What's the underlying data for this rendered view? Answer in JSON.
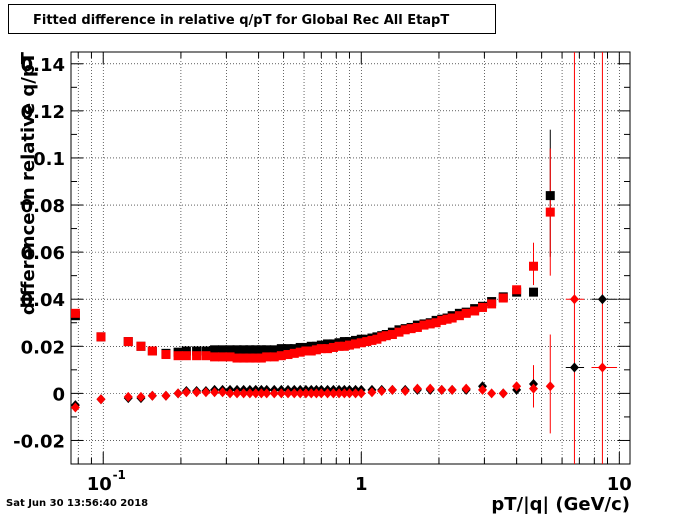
{
  "header": {
    "title": "Fitted difference in relative q/pT  for Global Rec All EtapT"
  },
  "footer": {
    "datestamp": "Sat Jun 30 13:56:40 2018"
  },
  "chart_data": {
    "type": "scatter",
    "title": "Fitted difference in relative q/pT  for Global Rec All EtapT",
    "xlabel": "pT/|q| (GeV/c)",
    "ylabel": "difference in relative q/pT",
    "xscale": "log",
    "xlim": [
      0.075,
      11.0
    ],
    "ylim": [
      -0.03,
      0.145
    ],
    "grid": true,
    "x_tick_labels": [
      "10^-1",
      "1",
      "10"
    ],
    "y_tick_labels": [
      "-0.02",
      "0",
      "0.02",
      "0.04",
      "0.06",
      "0.08",
      "0.1",
      "0.12",
      "0.14"
    ],
    "colors": {
      "black": "#000000",
      "red": "#ff0000"
    },
    "series": [
      {
        "marker": "square",
        "color": "#000000",
        "points": [
          [
            0.078,
            0.033
          ],
          [
            0.098,
            0.024
          ],
          [
            0.125,
            0.022
          ],
          [
            0.14,
            0.02
          ],
          [
            0.155,
            0.018
          ],
          [
            0.175,
            0.017
          ],
          [
            0.195,
            0.0175
          ],
          [
            0.21,
            0.018
          ],
          [
            0.23,
            0.018
          ],
          [
            0.25,
            0.018
          ],
          [
            0.27,
            0.0185
          ],
          [
            0.29,
            0.0185
          ],
          [
            0.31,
            0.0185
          ],
          [
            0.33,
            0.0185
          ],
          [
            0.35,
            0.0185
          ],
          [
            0.37,
            0.0185
          ],
          [
            0.39,
            0.0185
          ],
          [
            0.41,
            0.0185
          ],
          [
            0.43,
            0.0185
          ],
          [
            0.46,
            0.0185
          ],
          [
            0.49,
            0.019
          ],
          [
            0.52,
            0.019
          ],
          [
            0.55,
            0.019
          ],
          [
            0.58,
            0.0195
          ],
          [
            0.61,
            0.0195
          ],
          [
            0.64,
            0.02
          ],
          [
            0.67,
            0.02
          ],
          [
            0.7,
            0.0205
          ],
          [
            0.74,
            0.021
          ],
          [
            0.78,
            0.021
          ],
          [
            0.82,
            0.0215
          ],
          [
            0.86,
            0.022
          ],
          [
            0.9,
            0.022
          ],
          [
            0.95,
            0.0225
          ],
          [
            1.0,
            0.023
          ],
          [
            1.05,
            0.023
          ],
          [
            1.1,
            0.0235
          ],
          [
            1.15,
            0.024
          ],
          [
            1.2,
            0.0245
          ],
          [
            1.25,
            0.025
          ],
          [
            1.32,
            0.026
          ],
          [
            1.4,
            0.027
          ],
          [
            1.48,
            0.0275
          ],
          [
            1.56,
            0.028
          ],
          [
            1.65,
            0.029
          ],
          [
            1.75,
            0.0295
          ],
          [
            1.85,
            0.03
          ],
          [
            1.95,
            0.031
          ],
          [
            2.05,
            0.0315
          ],
          [
            2.15,
            0.032
          ],
          [
            2.25,
            0.033
          ],
          [
            2.4,
            0.034
          ],
          [
            2.55,
            0.0345
          ],
          [
            2.75,
            0.036
          ],
          [
            2.95,
            0.037
          ],
          [
            3.2,
            0.039
          ],
          [
            3.55,
            0.041
          ],
          [
            4.0,
            0.043
          ],
          [
            4.65,
            0.043
          ],
          [
            5.4,
            0.084
          ]
        ]
      },
      {
        "marker": "square",
        "color": "#ff0000",
        "points": [
          [
            0.078,
            0.034
          ],
          [
            0.098,
            0.024
          ],
          [
            0.125,
            0.022
          ],
          [
            0.14,
            0.02
          ],
          [
            0.155,
            0.018
          ],
          [
            0.175,
            0.0165
          ],
          [
            0.195,
            0.016
          ],
          [
            0.21,
            0.016
          ],
          [
            0.23,
            0.016
          ],
          [
            0.25,
            0.016
          ],
          [
            0.27,
            0.0155
          ],
          [
            0.29,
            0.0155
          ],
          [
            0.31,
            0.0155
          ],
          [
            0.33,
            0.015
          ],
          [
            0.35,
            0.015
          ],
          [
            0.37,
            0.015
          ],
          [
            0.39,
            0.015
          ],
          [
            0.41,
            0.015
          ],
          [
            0.43,
            0.0155
          ],
          [
            0.46,
            0.0155
          ],
          [
            0.49,
            0.016
          ],
          [
            0.52,
            0.0165
          ],
          [
            0.55,
            0.017
          ],
          [
            0.58,
            0.0175
          ],
          [
            0.61,
            0.018
          ],
          [
            0.64,
            0.018
          ],
          [
            0.67,
            0.0185
          ],
          [
            0.7,
            0.019
          ],
          [
            0.74,
            0.019
          ],
          [
            0.78,
            0.0195
          ],
          [
            0.82,
            0.02
          ],
          [
            0.86,
            0.02
          ],
          [
            0.9,
            0.0205
          ],
          [
            0.95,
            0.021
          ],
          [
            1.0,
            0.0215
          ],
          [
            1.05,
            0.022
          ],
          [
            1.1,
            0.0225
          ],
          [
            1.15,
            0.023
          ],
          [
            1.2,
            0.024
          ],
          [
            1.25,
            0.0245
          ],
          [
            1.32,
            0.025
          ],
          [
            1.4,
            0.026
          ],
          [
            1.48,
            0.027
          ],
          [
            1.56,
            0.0275
          ],
          [
            1.65,
            0.028
          ],
          [
            1.75,
            0.029
          ],
          [
            1.85,
            0.0295
          ],
          [
            1.95,
            0.03
          ],
          [
            2.05,
            0.031
          ],
          [
            2.15,
            0.0315
          ],
          [
            2.25,
            0.032
          ],
          [
            2.4,
            0.033
          ],
          [
            2.55,
            0.034
          ],
          [
            2.75,
            0.035
          ],
          [
            2.95,
            0.0365
          ],
          [
            3.2,
            0.038
          ],
          [
            3.55,
            0.0405
          ],
          [
            4.0,
            0.044
          ],
          [
            4.65,
            0.054
          ],
          [
            5.4,
            0.077
          ]
        ]
      },
      {
        "marker": "diamond",
        "color": "#000000",
        "points": [
          [
            0.078,
            -0.005
          ],
          [
            0.098,
            -0.0025
          ],
          [
            0.125,
            -0.002
          ],
          [
            0.14,
            -0.002
          ],
          [
            0.155,
            -0.001
          ],
          [
            0.175,
            -0.001
          ],
          [
            0.195,
            0.0
          ],
          [
            0.21,
            0.001
          ],
          [
            0.23,
            0.001
          ],
          [
            0.25,
            0.001
          ],
          [
            0.27,
            0.0015
          ],
          [
            0.29,
            0.0015
          ],
          [
            0.31,
            0.0015
          ],
          [
            0.33,
            0.0015
          ],
          [
            0.35,
            0.0015
          ],
          [
            0.37,
            0.0015
          ],
          [
            0.39,
            0.0015
          ],
          [
            0.41,
            0.0015
          ],
          [
            0.43,
            0.0015
          ],
          [
            0.46,
            0.0015
          ],
          [
            0.49,
            0.0015
          ],
          [
            0.52,
            0.0015
          ],
          [
            0.55,
            0.0015
          ],
          [
            0.58,
            0.0015
          ],
          [
            0.61,
            0.0015
          ],
          [
            0.64,
            0.0015
          ],
          [
            0.67,
            0.0015
          ],
          [
            0.7,
            0.0015
          ],
          [
            0.74,
            0.0015
          ],
          [
            0.78,
            0.0015
          ],
          [
            0.82,
            0.0015
          ],
          [
            0.86,
            0.0015
          ],
          [
            0.9,
            0.0015
          ],
          [
            0.95,
            0.0015
          ],
          [
            1.0,
            0.0015
          ],
          [
            1.1,
            0.0015
          ],
          [
            1.2,
            0.0015
          ],
          [
            1.32,
            0.0015
          ],
          [
            1.48,
            0.0015
          ],
          [
            1.65,
            0.0015
          ],
          [
            1.85,
            0.0015
          ],
          [
            2.05,
            0.0015
          ],
          [
            2.25,
            0.0015
          ],
          [
            2.55,
            0.0015
          ],
          [
            2.95,
            0.003
          ],
          [
            3.55,
            0.0
          ],
          [
            4.0,
            0.0015
          ],
          [
            4.65,
            0.004
          ],
          [
            6.7,
            0.011
          ],
          [
            8.6,
            0.04
          ]
        ]
      },
      {
        "marker": "diamond",
        "color": "#ff0000",
        "points": [
          [
            0.078,
            -0.006
          ],
          [
            0.098,
            -0.0025
          ],
          [
            0.125,
            -0.0015
          ],
          [
            0.14,
            -0.0015
          ],
          [
            0.155,
            -0.001
          ],
          [
            0.175,
            -0.001
          ],
          [
            0.195,
            0.0
          ],
          [
            0.21,
            0.0005
          ],
          [
            0.23,
            0.0005
          ],
          [
            0.25,
            0.0005
          ],
          [
            0.27,
            0.0005
          ],
          [
            0.29,
            0.0005
          ],
          [
            0.31,
            0.0
          ],
          [
            0.33,
            0.0
          ],
          [
            0.35,
            0.0
          ],
          [
            0.37,
            0.0
          ],
          [
            0.39,
            0.0
          ],
          [
            0.41,
            0.0
          ],
          [
            0.43,
            0.0
          ],
          [
            0.46,
            0.0
          ],
          [
            0.49,
            0.0
          ],
          [
            0.52,
            0.0
          ],
          [
            0.55,
            0.0
          ],
          [
            0.58,
            0.0
          ],
          [
            0.61,
            0.0
          ],
          [
            0.64,
            0.0
          ],
          [
            0.67,
            0.0
          ],
          [
            0.7,
            0.0
          ],
          [
            0.74,
            0.0
          ],
          [
            0.78,
            0.0
          ],
          [
            0.82,
            0.0
          ],
          [
            0.86,
            0.0
          ],
          [
            0.9,
            0.0
          ],
          [
            0.95,
            0.0
          ],
          [
            1.0,
            0.0
          ],
          [
            1.1,
            0.0005
          ],
          [
            1.2,
            0.001
          ],
          [
            1.32,
            0.0015
          ],
          [
            1.48,
            0.001
          ],
          [
            1.65,
            0.002
          ],
          [
            1.85,
            0.002
          ],
          [
            2.05,
            0.0015
          ],
          [
            2.25,
            0.0015
          ],
          [
            2.55,
            0.002
          ],
          [
            2.95,
            0.0015
          ],
          [
            3.2,
            0.0
          ],
          [
            3.55,
            0.0
          ],
          [
            4.0,
            0.003
          ],
          [
            4.65,
            0.002
          ],
          [
            5.4,
            0.003
          ],
          [
            6.7,
            0.04
          ],
          [
            8.6,
            0.011
          ]
        ]
      }
    ],
    "errors": [
      {
        "x": 5.4,
        "color": "#000000",
        "low": 0.058,
        "high": 0.112
      },
      {
        "x": 5.4,
        "color": "#ff0000",
        "low": 0.05,
        "high": 0.104
      },
      {
        "x": 4.65,
        "color": "#ff0000",
        "low": 0.046,
        "high": 0.064
      },
      {
        "x": 4.65,
        "color": "#ff0000",
        "low": -0.006,
        "high": 0.012
      },
      {
        "x": 5.4,
        "color": "#ff0000",
        "low": -0.017,
        "high": 0.025
      },
      {
        "x": 6.7,
        "color": "#ff0000",
        "low": -0.03,
        "high": 0.145
      },
      {
        "x": 8.6,
        "color": "#ff0000",
        "low": -0.03,
        "high": 0.145
      }
    ],
    "last_bin_dash": [
      {
        "x1": 6.2,
        "x2": 7.3,
        "y": 0.011,
        "color": "#000000"
      },
      {
        "x1": 7.8,
        "x2": 9.8,
        "y": 0.04,
        "color": "#000000"
      },
      {
        "x1": 6.2,
        "x2": 7.3,
        "y": 0.04,
        "color": "#ff0000"
      },
      {
        "x1": 7.8,
        "x2": 9.8,
        "y": 0.011,
        "color": "#ff0000"
      }
    ]
  }
}
